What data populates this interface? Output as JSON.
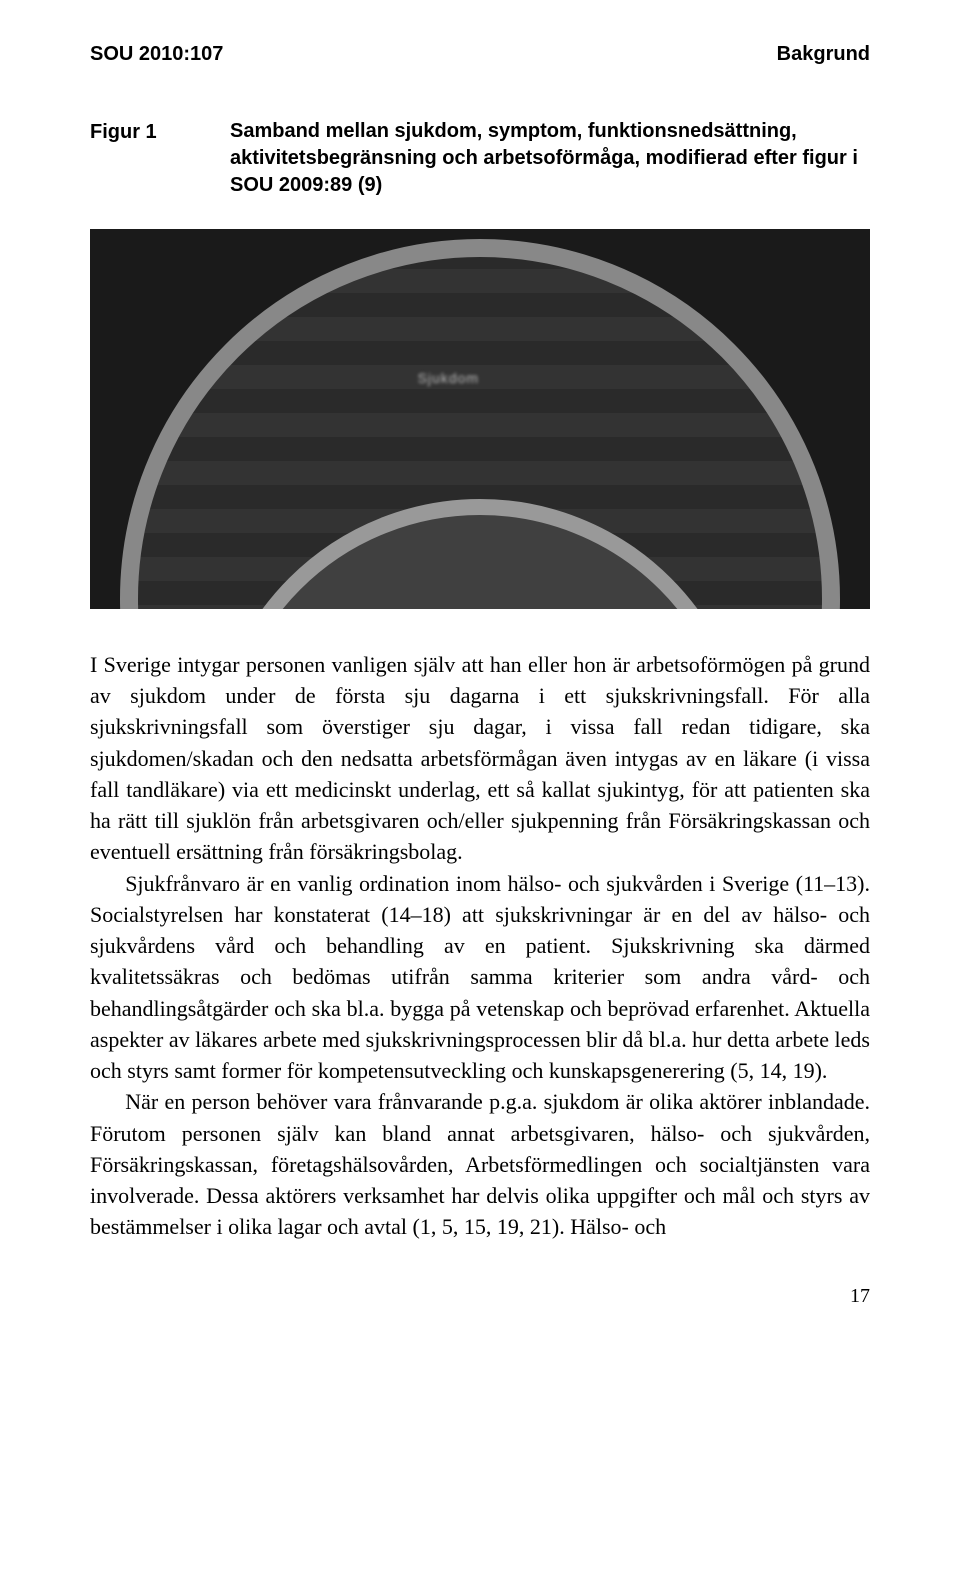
{
  "header": {
    "left": "SOU 2010:107",
    "right": "Bakgrund"
  },
  "figure": {
    "label": "Figur 1",
    "caption": "Samband mellan sjukdom, symptom, funktionsnedsättning, aktivitetsbegränsning och arbetsoförmåga, modifierad efter figur i SOU 2009:89 (9)",
    "inner_label": "Sjukdom",
    "colors": {
      "background": "#1a1a1a",
      "arc_border": "#888888",
      "stripe_dark": "#2a2a2a",
      "stripe_light": "#333333",
      "inner_fill": "#404040"
    }
  },
  "paragraphs": {
    "p1": "I Sverige intygar personen vanligen själv att han eller hon är arbetsoförmögen på grund av sjukdom under de första sju dagarna i ett sjukskrivningsfall. För alla sjukskrivningsfall som överstiger sju dagar, i vissa fall redan tidigare, ska sjukdomen/skadan och den nedsatta arbetsförmågan även intygas av en läkare (i vissa fall tandläkare) via ett medicinskt underlag, ett så kallat sjukintyg, för att patienten ska ha rätt till sjuklön från arbetsgivaren och/eller sjukpenning från Försäkringskassan och eventuell ersättning från försäkringsbolag.",
    "p2": "Sjukfrånvaro är en vanlig ordination inom hälso- och sjukvården i Sverige (11–13). Socialstyrelsen har konstaterat (14–18) att sjukskrivningar är en del av hälso- och sjukvårdens vård och behandling av en patient. Sjukskrivning ska därmed kvalitetssäkras och bedömas utifrån samma kriterier som andra vård- och behandlingsåtgärder och ska bl.a. bygga på vetenskap och beprövad erfarenhet. Aktuella aspekter av läkares arbete med sjukskrivningsprocessen blir då bl.a. hur detta arbete leds och styrs samt former för kompetensutveckling och kunskapsgenerering (5, 14, 19).",
    "p3": "När en person behöver vara frånvarande p.g.a. sjukdom är olika aktörer inblandade. Förutom personen själv kan bland annat arbetsgivaren, hälso- och sjukvården, Försäkringskassan, företagshälsovården, Arbetsförmedlingen och socialtjänsten vara involverade. Dessa aktörers verksamhet har delvis olika uppgifter och mål och styrs av bestämmelser i olika lagar och avtal (1, 5, 15, 19, 21). Hälso- och"
  },
  "page_number": "17"
}
